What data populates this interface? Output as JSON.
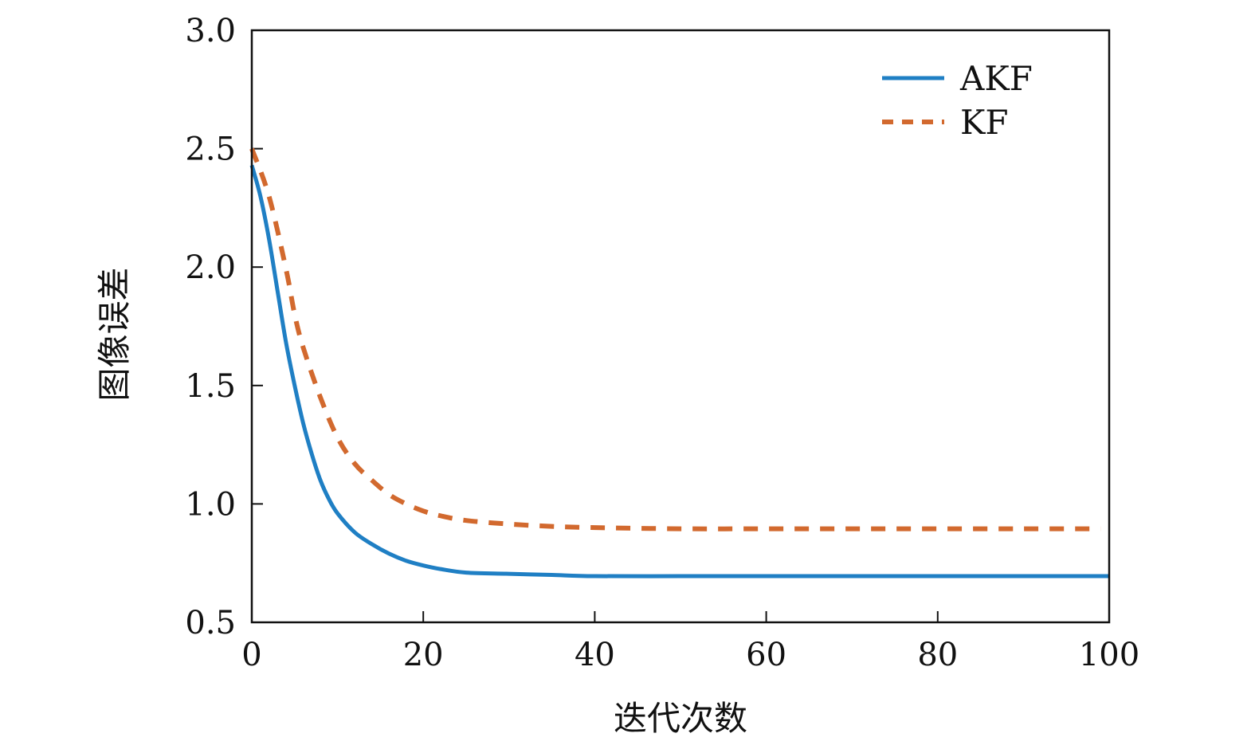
{
  "chart_data": {
    "type": "line",
    "title": "",
    "xlabel": "迭代次数",
    "ylabel": "图像误差",
    "xlim": [
      0,
      100
    ],
    "ylim": [
      0.5,
      3.0
    ],
    "xticks": [
      0,
      20,
      40,
      60,
      80,
      100
    ],
    "xtick_labels": [
      "0",
      "20",
      "40",
      "60",
      "80",
      "100"
    ],
    "yticks": [
      0.5,
      1.0,
      1.5,
      2.0,
      2.5,
      3.0
    ],
    "ytick_labels": [
      "0.5",
      "1.0",
      "1.5",
      "2.0",
      "2.5",
      "3.0"
    ],
    "grid": false,
    "legend_position": "top-right",
    "series": [
      {
        "name": "AKF",
        "style": "solid",
        "color": "#1f7fc4",
        "x": [
          0,
          1,
          2,
          3,
          4,
          5,
          6,
          7,
          8,
          9,
          10,
          12,
          14,
          16,
          18,
          20,
          22,
          25,
          30,
          35,
          40,
          50,
          60,
          70,
          80,
          90,
          100
        ],
        "y": [
          2.43,
          2.3,
          2.12,
          1.9,
          1.68,
          1.5,
          1.34,
          1.21,
          1.1,
          1.02,
          0.96,
          0.88,
          0.83,
          0.79,
          0.76,
          0.74,
          0.725,
          0.71,
          0.705,
          0.7,
          0.695,
          0.695,
          0.695,
          0.695,
          0.695,
          0.695,
          0.695
        ]
      },
      {
        "name": "KF",
        "style": "dashed",
        "color": "#d2692e",
        "x": [
          0,
          2,
          4,
          5,
          6,
          8,
          10,
          12,
          14,
          16,
          18,
          20,
          22,
          25,
          30,
          35,
          40,
          50,
          60,
          70,
          80,
          90,
          99
        ],
        "y": [
          2.5,
          2.3,
          1.99,
          1.8,
          1.66,
          1.45,
          1.28,
          1.17,
          1.1,
          1.04,
          1.0,
          0.97,
          0.95,
          0.93,
          0.915,
          0.905,
          0.9,
          0.895,
          0.895,
          0.895,
          0.895,
          0.895,
          0.895
        ]
      }
    ]
  }
}
